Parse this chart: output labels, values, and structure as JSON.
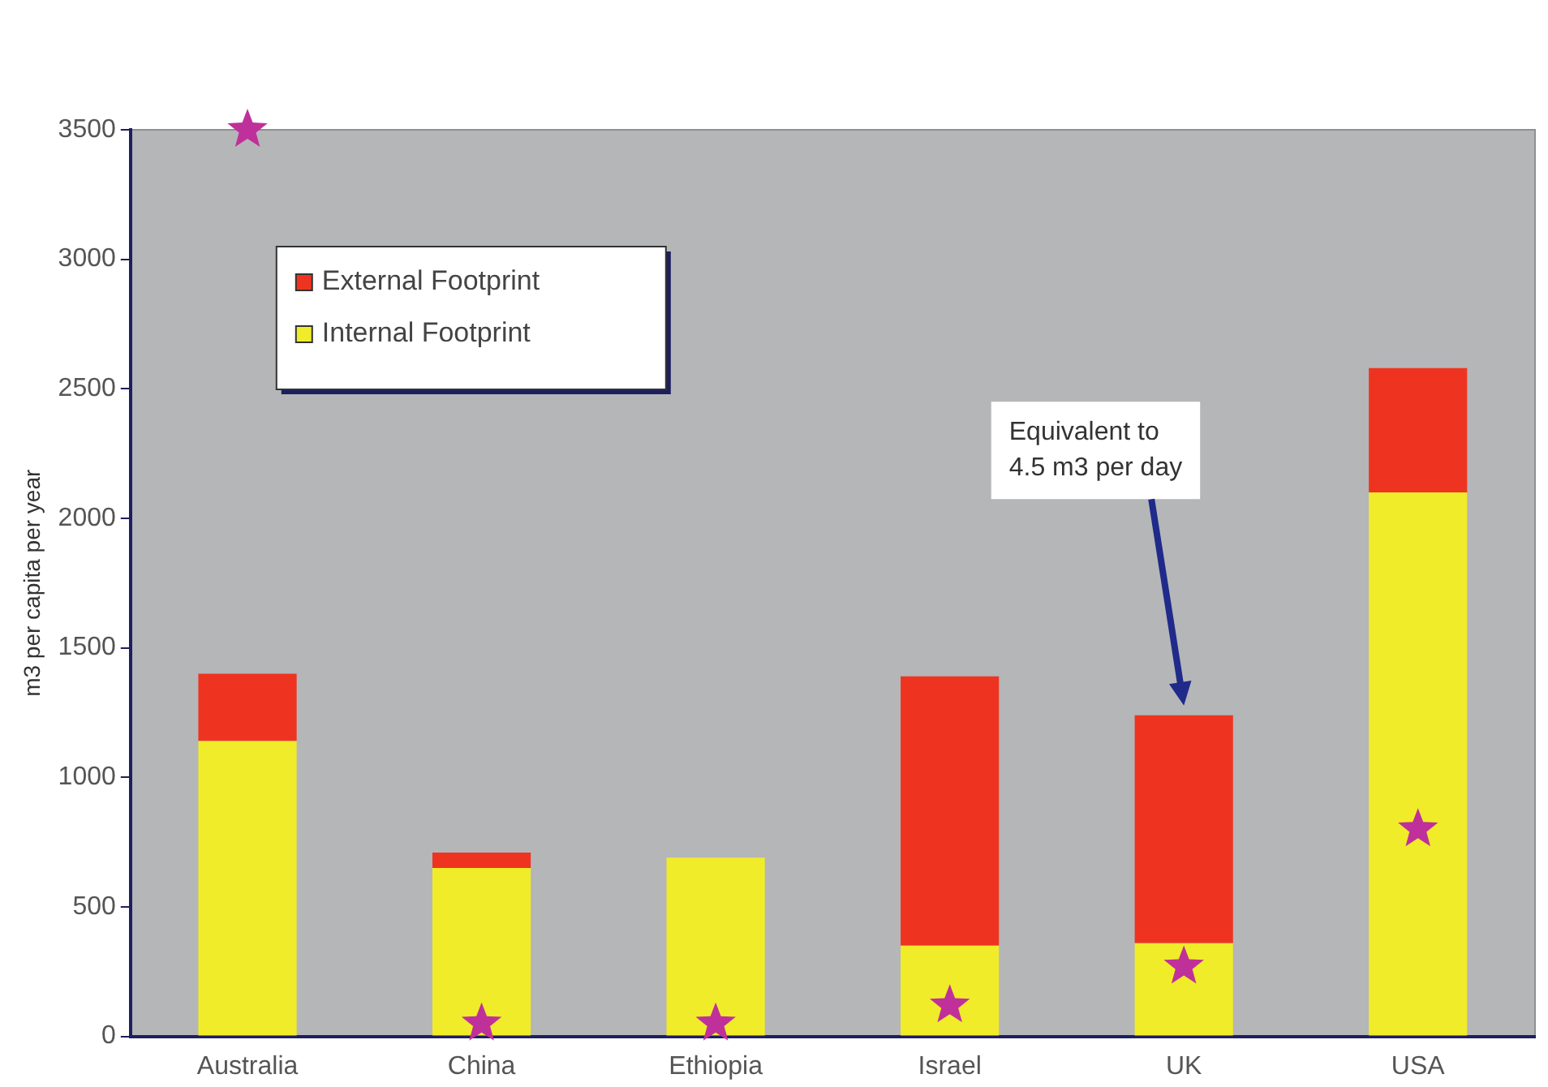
{
  "chart_data": {
    "type": "bar",
    "stacked": true,
    "ylabel": "m3 per capita per year",
    "categories": [
      "Australia",
      "China",
      "Ethiopia",
      "Israel",
      "UK",
      "USA"
    ],
    "series": [
      {
        "name": "Internal Footprint",
        "color": "#f0ec2a",
        "values": [
          1140,
          650,
          690,
          350,
          360,
          2100
        ]
      },
      {
        "name": "External Footprint",
        "color": "#ee3420",
        "values": [
          260,
          60,
          0,
          1040,
          880,
          480
        ]
      },
      {
        "type": "scatter",
        "color": "#c0309a",
        "x": [
          "Australia",
          "China",
          "Ethiopia",
          "Israel",
          "UK",
          "USA"
        ],
        "values": [
          3500,
          50,
          50,
          120,
          270,
          800
        ]
      }
    ],
    "marker": "star",
    "ylim": [
      0,
      3500
    ],
    "yticks": [
      0,
      500,
      1000,
      1500,
      2000,
      2500,
      3000,
      3500
    ],
    "grid": false,
    "legend": "top left",
    "annotations": [
      "Equivalent to\n4.5 m3 per day"
    ]
  }
}
